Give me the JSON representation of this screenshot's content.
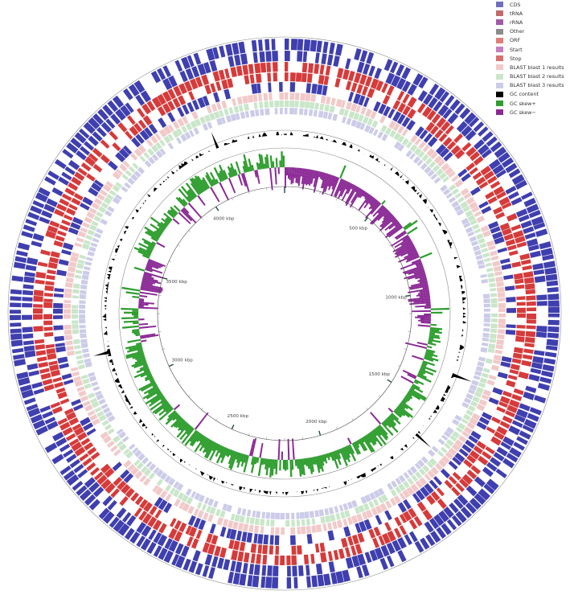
{
  "legend": [
    {
      "label": "CDS",
      "color": "#6f6fc0"
    },
    {
      "label": "tRNA",
      "color": "#c06a6a"
    },
    {
      "label": "rRNA",
      "color": "#a15ba8"
    },
    {
      "label": "Other",
      "color": "#8c8c8c"
    },
    {
      "label": "ORF",
      "color": "#e07d78"
    },
    {
      "label": "Start",
      "color": "#c77cc0"
    },
    {
      "label": "Stop",
      "color": "#d96f6f"
    },
    {
      "label": "BLAST blast 1 results",
      "color": "#f2c9c9"
    },
    {
      "label": "BLAST blast 2 results",
      "color": "#c9e6c9"
    },
    {
      "label": "BLAST blast 3 results",
      "color": "#cccce9"
    },
    {
      "label": "GC content",
      "color": "#000000"
    },
    {
      "label": "GC skew+",
      "color": "#2e9e2e"
    },
    {
      "label": "GC skew−",
      "color": "#8b2a96"
    }
  ],
  "genome_scale": {
    "total_kbp": 4400,
    "ticks": [
      {
        "kbp": 500,
        "label": "500 kbp"
      },
      {
        "kbp": 1000,
        "label": "1000 kbp"
      },
      {
        "kbp": 1500,
        "label": "1500 kbp"
      },
      {
        "kbp": 2000,
        "label": "2000 kbp"
      },
      {
        "kbp": 2500,
        "label": "2500 kbp"
      },
      {
        "kbp": 3000,
        "label": "3000 kbp"
      },
      {
        "kbp": 3500,
        "label": "3500 kbp"
      },
      {
        "kbp": 4000,
        "label": "4000 kbp"
      }
    ]
  },
  "colors": {
    "cds_forward": "#2f2fa8",
    "cds_reverse": "#2f2fa8",
    "orf": "#d22a2a",
    "blast1": "#f2c9c9",
    "blast2": "#c9e6c9",
    "blast3": "#cccce9",
    "gc_content": "#000000",
    "gc_skew_plus": "#2e9e2e",
    "gc_skew_minus": "#8b2a96",
    "ring_outline": "#888888"
  }
}
